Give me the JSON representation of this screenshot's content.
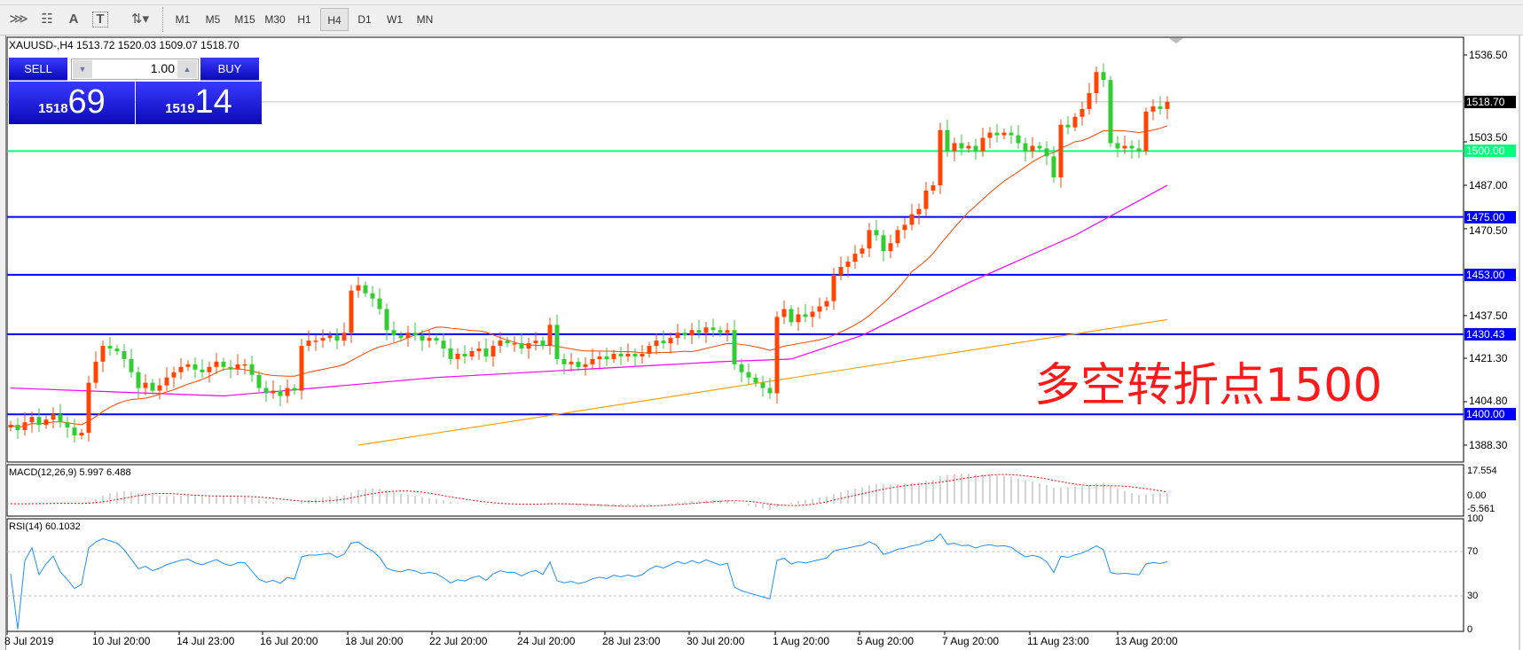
{
  "toolbar": {
    "icons": [
      "elliott-wave-icon",
      "fibonacci-icon",
      "text-icon",
      "text-label-icon",
      "arrows-icon"
    ],
    "text_tool": "A",
    "timeframes": [
      "M1",
      "M5",
      "M15",
      "M30",
      "H1",
      "H4",
      "D1",
      "W1",
      "MN"
    ],
    "active_timeframe": "H4"
  },
  "chart": {
    "title": "XAUUSD-,H4  1513.72 1520.03 1509.07 1518.70",
    "symbol": "XAUUSD-",
    "timeframe": "H4",
    "ohlc": {
      "open": 1513.72,
      "high": 1520.03,
      "low": 1509.07,
      "close": 1518.7
    },
    "annotation": "多空转折点1500",
    "colors": {
      "bull": "#ff4500",
      "bear": "#32cd32",
      "ma_fast": "#ff4500",
      "ma_mid": "#ff00ff",
      "ma_slow": "#ffa500",
      "support_lines": "#0000ff",
      "pivot_line": "#00ff7f",
      "annotation": "#ff1a1a"
    }
  },
  "trade_panel": {
    "sell_label": "SELL",
    "buy_label": "BUY",
    "lot": "1.00",
    "sell_big": "1518",
    "sell_pips": "69",
    "buy_big": "1519",
    "buy_pips": "14"
  },
  "price_axis": {
    "ticks": [
      "1536.50",
      "1503.50",
      "1487.00",
      "1470.50",
      "1437.50",
      "1421.30",
      "1404.80",
      "1388.30"
    ],
    "current_price": "1518.70",
    "levels": [
      {
        "value": 1500.0,
        "label": "1500.00",
        "color": "#00ff7f"
      },
      {
        "value": 1475.0,
        "label": "1475.00",
        "color": "#0000ff"
      },
      {
        "value": 1453.0,
        "label": "1453.00",
        "color": "#0000ff"
      },
      {
        "value": 1430.43,
        "label": "1430.43",
        "color": "#0000ff"
      },
      {
        "value": 1400.0,
        "label": "1400.00",
        "color": "#0000ff"
      }
    ]
  },
  "macd": {
    "label": "MACD(12,26,9) 5.997 6.488",
    "ticks": [
      "17.554",
      "0.00",
      "-5.561"
    ]
  },
  "rsi": {
    "label": "RSI(14) 60.1032",
    "ticks": [
      "100",
      "70",
      "30",
      "0"
    ],
    "levels": [
      70,
      30
    ]
  },
  "time_axis": [
    "8 Jul 2019",
    "10 Jul 20:00",
    "14 Jul 23:00",
    "16 Jul 20:00",
    "18 Jul 20:00",
    "22 Jul 20:00",
    "24 Jul 20:00",
    "28 Jul 23:00",
    "30 Jul 20:00",
    "1 Aug 20:00",
    "5 Aug 20:00",
    "7 Aug 20:00",
    "11 Aug 23:00",
    "13 Aug 20:00"
  ],
  "chart_data": {
    "type": "candlestick",
    "closes": [
      1396,
      1394,
      1397,
      1399,
      1396,
      1398,
      1400,
      1397,
      1395,
      1392,
      1393,
      1412,
      1420,
      1426,
      1425,
      1424,
      1421,
      1416,
      1410,
      1412,
      1409,
      1411,
      1414,
      1416,
      1418,
      1419,
      1417,
      1416,
      1418,
      1420,
      1418,
      1417,
      1419,
      1419,
      1415,
      1410,
      1408,
      1409,
      1407,
      1410,
      1409,
      1426,
      1428,
      1428,
      1429,
      1430,
      1428,
      1431,
      1447,
      1449,
      1446,
      1444,
      1440,
      1432,
      1430,
      1429,
      1431,
      1430,
      1428,
      1429,
      1428,
      1425,
      1421,
      1423,
      1422,
      1424,
      1425,
      1422,
      1426,
      1428,
      1427,
      1427,
      1425,
      1427,
      1428,
      1426,
      1434,
      1421,
      1419,
      1420,
      1418,
      1419,
      1421,
      1422,
      1421,
      1423,
      1422,
      1423,
      1422,
      1423,
      1426,
      1428,
      1427,
      1429,
      1431,
      1430,
      1432,
      1431,
      1433,
      1432,
      1431,
      1432,
      1419,
      1416,
      1414,
      1412,
      1410,
      1408,
      1437,
      1440,
      1435,
      1438,
      1437,
      1439,
      1441,
      1443,
      1453,
      1456,
      1458,
      1461,
      1463,
      1470,
      1468,
      1462,
      1465,
      1470,
      1472,
      1476,
      1478,
      1485,
      1487,
      1508,
      1500,
      1503,
      1501,
      1502,
      1500,
      1505,
      1507,
      1506,
      1507,
      1506,
      1503,
      1500,
      1502,
      1501,
      1498,
      1490,
      1510,
      1509,
      1513,
      1516,
      1522,
      1530,
      1527,
      1503,
      1501,
      1502,
      1501,
      1500,
      1515,
      1517,
      1516,
      1518.7
    ],
    "ma_mid_points": [
      [
        0,
        1410
      ],
      [
        30,
        1407
      ],
      [
        60,
        1414
      ],
      [
        100,
        1420
      ],
      [
        110,
        1421
      ],
      [
        120,
        1430
      ],
      [
        135,
        1450
      ],
      [
        150,
        1468
      ],
      [
        163,
        1487
      ]
    ],
    "ma_slow_points": [
      [
        49,
        1388.3
      ],
      [
        163,
        1436
      ]
    ],
    "ylim": [
      1388.3,
      1536.5
    ]
  }
}
